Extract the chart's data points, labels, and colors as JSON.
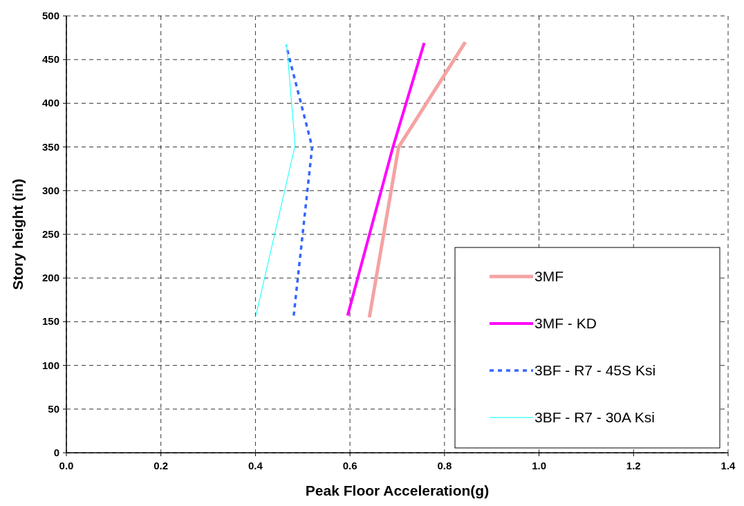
{
  "chart_data": {
    "type": "line",
    "xlabel": "Peak Floor Acceleration(g)",
    "ylabel": "Story height (in)",
    "xlim": [
      0,
      1.4
    ],
    "xticks": [
      {
        "value": 0,
        "label": "0.0"
      },
      {
        "value": 0.2,
        "label": "0.2"
      },
      {
        "value": 0.4,
        "label": "0.4"
      },
      {
        "value": 0.6,
        "label": "0.6"
      },
      {
        "value": 0.8,
        "label": "0.8"
      },
      {
        "value": 1,
        "label": "1.0"
      },
      {
        "value": 1.2,
        "label": "1.2"
      },
      {
        "value": 1.4,
        "label": "1.4"
      }
    ],
    "ylim": [
      0,
      500
    ],
    "yticks": [
      0,
      50,
      100,
      150,
      200,
      250,
      300,
      350,
      400,
      450,
      500
    ],
    "grid": true,
    "legend": "bottom right",
    "marker": "none",
    "series": [
      {
        "name": "3MF",
        "color": "#f4a3a3",
        "x": [
          0.641,
          0.703,
          0.844
        ],
        "values": [
          155,
          350,
          470
        ],
        "line_style": "solid"
      },
      {
        "name": "3MF - KD",
        "color": "#ff00ff",
        "x": [
          0.595,
          0.691,
          0.757
        ],
        "values": [
          157,
          350,
          469
        ],
        "line_style": "solid"
      },
      {
        "name": "3BF - R7 - 45S Ksi",
        "color": "#3366ff",
        "x": [
          0.481,
          0.52,
          0.465
        ],
        "values": [
          157,
          350,
          466
        ],
        "line_style": "dashed"
      },
      {
        "name": "3BF - R7 - 30A Ksi",
        "color": "#00ffff",
        "x": [
          0.401,
          0.484,
          0.466
        ],
        "values": [
          157,
          352,
          468
        ],
        "line_style": "solid"
      }
    ]
  }
}
